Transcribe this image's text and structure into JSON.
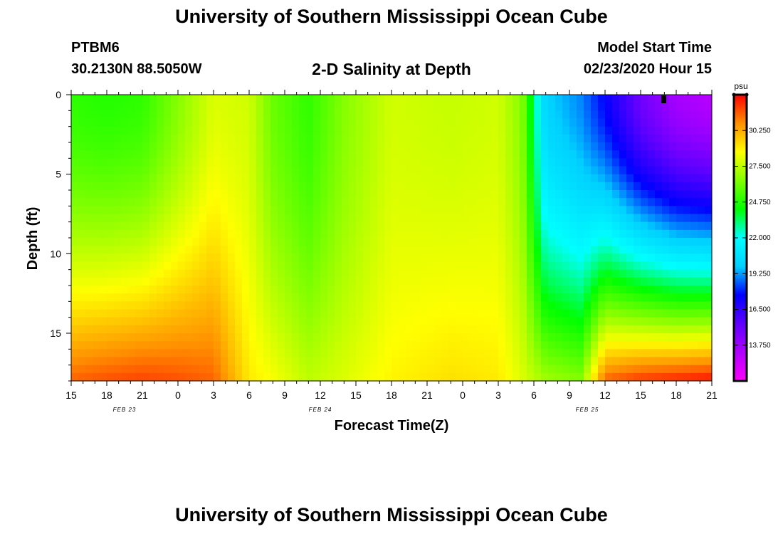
{
  "header": {
    "main_title": "University of Southern Mississippi Ocean Cube",
    "station_id": "PTBM6",
    "station_coords": "30.2130N 88.5050W",
    "plot_subtitle": "2-D Salinity at Depth",
    "model_start_label": "Model Start Time",
    "model_start_value": "02/23/2020 Hour 15"
  },
  "footer": {
    "title": "University of Southern Mississippi Ocean Cube"
  },
  "chart_data": {
    "type": "heatmap",
    "title": "2-D Salinity at Depth",
    "xlabel": "Forecast Time(Z)",
    "ylabel": "Depth (ft)",
    "x_tick_labels": [
      "15",
      "18",
      "21",
      "0",
      "3",
      "6",
      "9",
      "12",
      "15",
      "18",
      "21",
      "0",
      "3",
      "6",
      "9",
      "12",
      "15",
      "18",
      "21"
    ],
    "x_range_hours": [
      0,
      54
    ],
    "date_labels": [
      {
        "label": "FEB 23",
        "hour": 4.5
      },
      {
        "label": "FEB 24",
        "hour": 21
      },
      {
        "label": "FEB 25",
        "hour": 43.5
      }
    ],
    "y_tick_labels": [
      "0",
      "5",
      "10",
      "15"
    ],
    "y_tick_values": [
      0,
      5,
      10,
      15
    ],
    "ylim": [
      0,
      18
    ],
    "colorbar": {
      "unit": "psu",
      "min": 11.0,
      "max": 33.0,
      "tick_labels": [
        "30.250",
        "27.500",
        "24.750",
        "22.000",
        "19.250",
        "16.500",
        "13.750"
      ],
      "tick_values": [
        30.25,
        27.5,
        24.75,
        22.0,
        19.25,
        16.5,
        13.75
      ],
      "gradient_colors": [
        "#ff00ff",
        "#b000ff",
        "#6000ff",
        "#0000ff",
        "#00d0ff",
        "#00ffff",
        "#00ff00",
        "#80ff00",
        "#ffff00",
        "#ff9000",
        "#ff0000"
      ]
    },
    "salinity_psu_sample_columns": [
      {
        "hour": 0,
        "surface": 25.0,
        "bottom": 31.5
      },
      {
        "hour": 3,
        "surface": 24.8,
        "bottom": 31.8
      },
      {
        "hour": 6,
        "surface": 25.0,
        "bottom": 32.0
      },
      {
        "hour": 9,
        "surface": 26.5,
        "bottom": 31.8
      },
      {
        "hour": 12,
        "surface": 28.0,
        "bottom": 31.5
      },
      {
        "hour": 15,
        "surface": 27.8,
        "bottom": 29.0
      },
      {
        "hour": 17,
        "surface": 26.0,
        "bottom": 28.5
      },
      {
        "hour": 20,
        "surface": 25.0,
        "bottom": 27.5
      },
      {
        "hour": 23,
        "surface": 26.5,
        "bottom": 28.0
      },
      {
        "hour": 27,
        "surface": 27.8,
        "bottom": 28.8
      },
      {
        "hour": 32,
        "surface": 27.6,
        "bottom": 29.2
      },
      {
        "hour": 36,
        "surface": 27.8,
        "bottom": 29.0
      },
      {
        "hour": 38,
        "surface": 26.5,
        "bottom": 28.0
      },
      {
        "hour": 40,
        "surface": 20.0,
        "bottom": 27.0
      },
      {
        "hour": 43,
        "surface": 19.0,
        "bottom": 26.5
      },
      {
        "hour": 45,
        "surface": 17.5,
        "bottom": 31.5
      },
      {
        "hour": 48,
        "surface": 15.0,
        "bottom": 32.2
      },
      {
        "hour": 51,
        "surface": 13.5,
        "bottom": 32.5
      },
      {
        "hour": 54,
        "surface": 13.0,
        "bottom": 32.8
      }
    ]
  },
  "colors": {
    "text": "#000000",
    "background": "#ffffff"
  }
}
